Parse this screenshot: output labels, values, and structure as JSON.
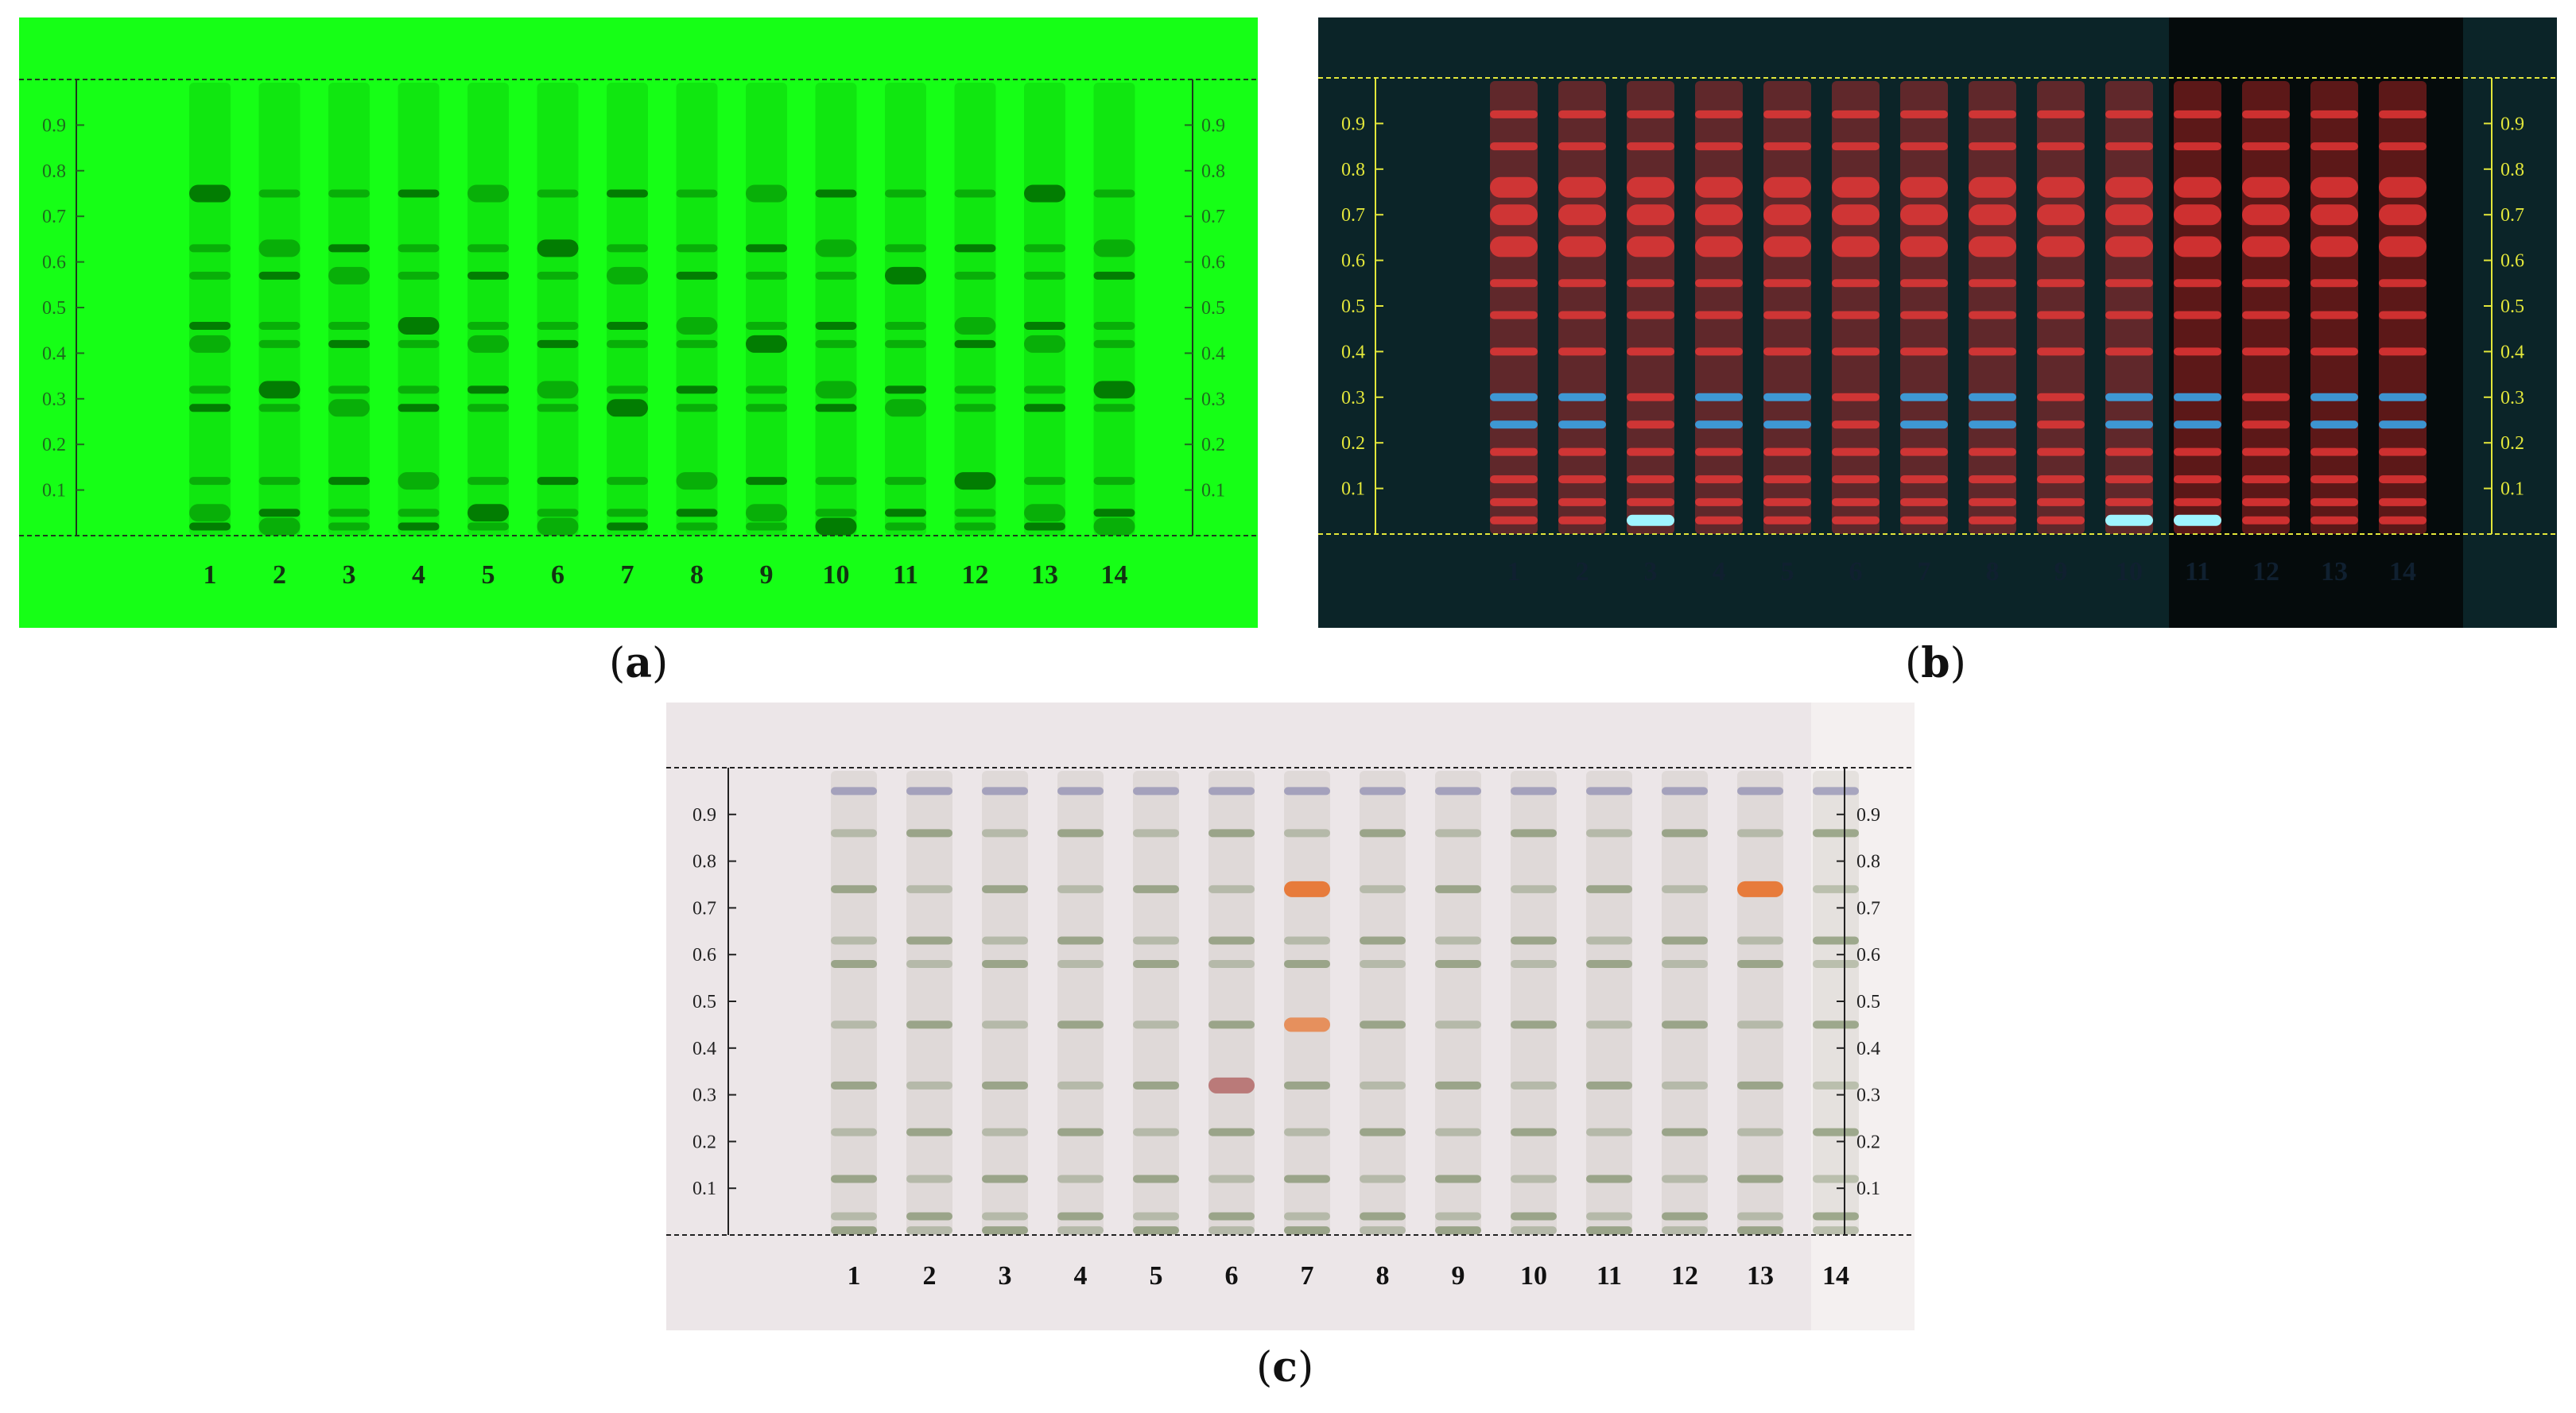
{
  "rf_ticks": [
    "0.1",
    "0.2",
    "0.3",
    "0.4",
    "0.5",
    "0.6",
    "0.7",
    "0.8",
    "0.9"
  ],
  "lanes": [
    "1",
    "2",
    "3",
    "4",
    "5",
    "6",
    "7",
    "8",
    "9",
    "10",
    "11",
    "12",
    "13",
    "14"
  ],
  "panels": [
    {
      "id": "a",
      "label_open": "(",
      "label_letter": "a",
      "label_close": ")",
      "background": "#16ff16",
      "band_color": "#006a00",
      "frame_color": "#1c3a1c",
      "tick_color": "#1e6a1e",
      "lane_number_color": "#123312"
    },
    {
      "id": "b",
      "label_open": "(",
      "label_letter": "b",
      "label_close": ")",
      "background": "#0b2428",
      "band_color": "#ff3a3a",
      "fluor_blue": "#36b4ff",
      "frame_color": "#e2e63a",
      "tick_color": "#e2e63a",
      "lane_number_color": "#102030"
    },
    {
      "id": "c",
      "label_open": "(",
      "label_letter": "c",
      "label_close": ")",
      "background": "#ece6e8",
      "band_color": "#56703a",
      "orange_color": "#e8702a",
      "frame_color": "#222222",
      "tick_color": "#222222",
      "lane_number_color": "#111111"
    }
  ]
}
